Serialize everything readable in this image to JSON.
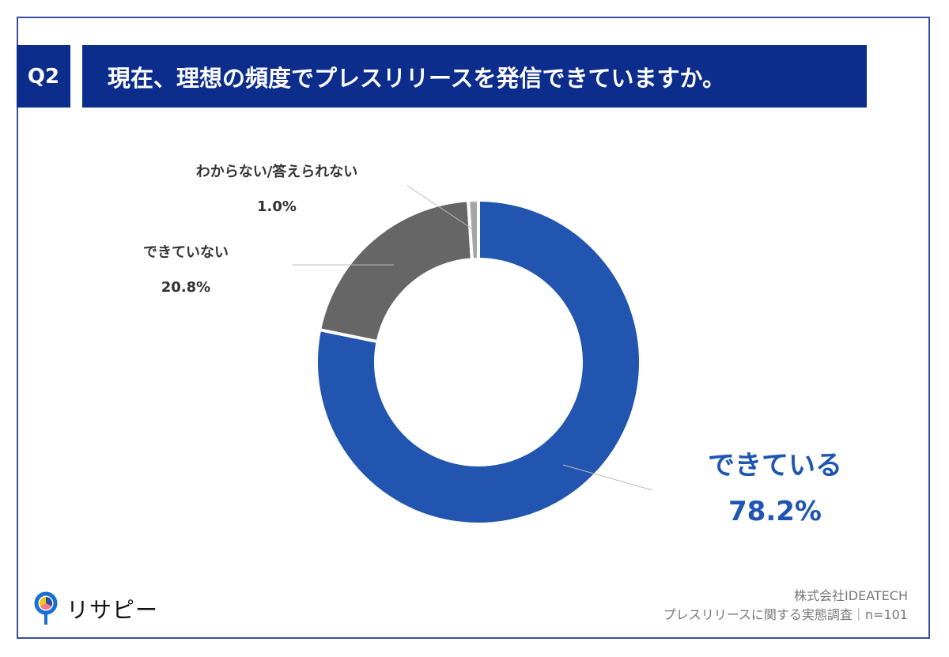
{
  "header": {
    "question_no": "Q2",
    "title": "現在、理想の頻度でプレスリリースを発信できていますか。"
  },
  "chart_data": {
    "type": "pie",
    "variant": "donut",
    "title": "現在、理想の頻度でプレスリリースを発信できていますか。",
    "slices": [
      {
        "label": "できている",
        "value": 78.2,
        "display": "78.2%",
        "color": "#2155b0"
      },
      {
        "label": "できていない",
        "value": 20.8,
        "display": "20.8%",
        "color": "#666666"
      },
      {
        "label": "わからない/答えられない",
        "value": 1.0,
        "display": "1.0%",
        "color": "#a6a6a6"
      }
    ]
  },
  "source": {
    "company": "株式会社IDEATECH",
    "survey": "プレスリリースに関する実態調査｜n=101"
  },
  "logo": {
    "text": "リサピー"
  }
}
